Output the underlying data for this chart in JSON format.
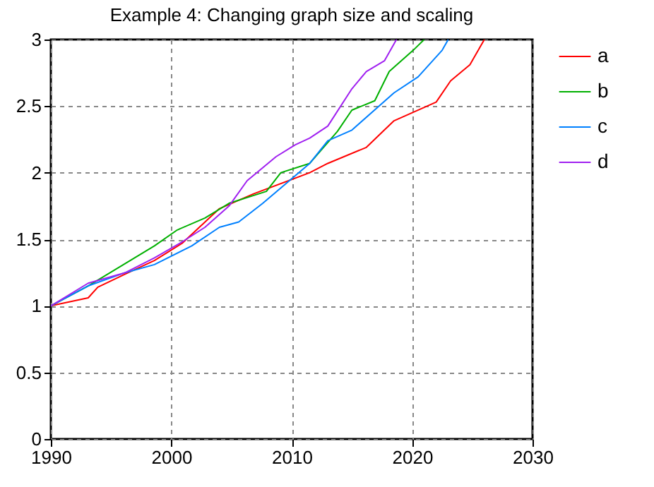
{
  "chart_data": {
    "type": "line",
    "title": "Example 4: Changing graph size and scaling",
    "series": [
      {
        "name": "a",
        "color": "#ff0000",
        "x": [
          1990,
          1993.1,
          1993.9,
          1996.2,
          1998.6,
          2000.9,
          2004,
          2006.8,
          2011.5,
          2013,
          2016.2,
          2018.5,
          2022,
          2023.2,
          2024.8,
          2026
        ],
        "values": [
          1.0,
          1.06,
          1.14,
          1.24,
          1.34,
          1.47,
          1.73,
          1.84,
          2.0,
          2.07,
          2.19,
          2.39,
          2.53,
          2.69,
          2.81,
          3.0
        ]
      },
      {
        "name": "b",
        "color": "#00b000",
        "x": [
          1990,
          1993.1,
          1998.6,
          2000.5,
          2002.8,
          2004.8,
          2007.9,
          2009.1,
          2011.5,
          2013.8,
          2015,
          2016.9,
          2018.1,
          2020.1,
          2021
        ],
        "values": [
          1.0,
          1.15,
          1.45,
          1.57,
          1.66,
          1.77,
          1.86,
          2.0,
          2.07,
          2.31,
          2.47,
          2.54,
          2.76,
          2.92,
          3.0
        ]
      },
      {
        "name": "c",
        "color": "#0080ff",
        "x": [
          1990,
          1993.1,
          1996.2,
          1998.6,
          2001.7,
          2004,
          2005.6,
          2007.6,
          2011.5,
          2013,
          2015,
          2018.5,
          2020.5,
          2022.5,
          2023
        ],
        "values": [
          1.0,
          1.15,
          1.25,
          1.31,
          1.45,
          1.59,
          1.63,
          1.77,
          2.07,
          2.24,
          2.32,
          2.6,
          2.72,
          2.92,
          3.0
        ]
      },
      {
        "name": "d",
        "color": "#a020f0",
        "x": [
          1990,
          1993.1,
          1996.2,
          1998.6,
          2000.9,
          2002.8,
          2004.8,
          2006.3,
          2008.7,
          2010.3,
          2011.5,
          2013,
          2015,
          2016.2,
          2017.7,
          2018.7
        ],
        "values": [
          1.0,
          1.17,
          1.25,
          1.36,
          1.48,
          1.59,
          1.75,
          1.94,
          2.12,
          2.21,
          2.26,
          2.35,
          2.63,
          2.76,
          2.84,
          3.0
        ]
      }
    ],
    "xlim": [
      1990,
      2030
    ],
    "xticks": [
      1990,
      2000,
      2010,
      2020,
      2030
    ],
    "ylim": [
      0,
      3
    ],
    "yticks": [
      0,
      0.5,
      1,
      1.5,
      2,
      2.5,
      3
    ],
    "grid": true,
    "legend": "top right",
    "line_style": "solid"
  }
}
